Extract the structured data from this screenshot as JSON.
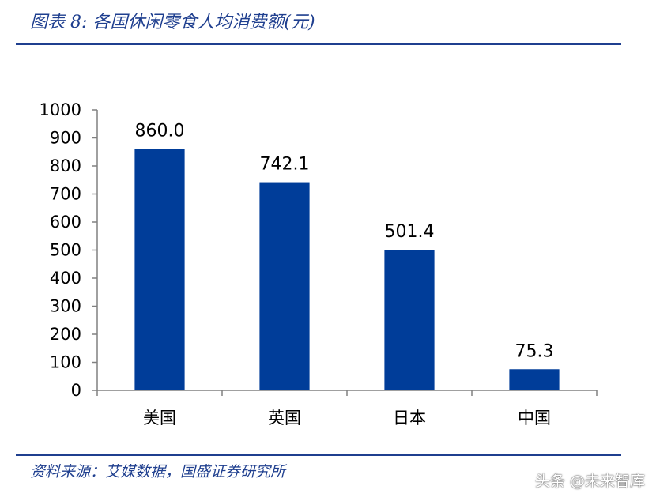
{
  "header": {
    "title": "图表 8:  各国休闲零食人均消费额(元)"
  },
  "footer": {
    "source": "资料来源：艾媒数据，国盛证券研究所"
  },
  "watermark": "头条 @未来智库",
  "colors": {
    "bar": "#003d99",
    "accent": "#1f3f8f",
    "axis": "#808080"
  },
  "chart_data": {
    "type": "bar",
    "title": "各国休闲零食人均消费额(元)",
    "categories": [
      "美国",
      "英国",
      "日本",
      "中国"
    ],
    "values": [
      860.0,
      742.1,
      501.4,
      75.3
    ],
    "data_labels": [
      "860.0",
      "742.1",
      "501.4",
      "75.3"
    ],
    "ylim": [
      0,
      1000
    ],
    "yticks": [
      0,
      100,
      200,
      300,
      400,
      500,
      600,
      700,
      800,
      900,
      1000
    ],
    "xlabel": "",
    "ylabel": "",
    "grid": false,
    "legend": "none"
  }
}
